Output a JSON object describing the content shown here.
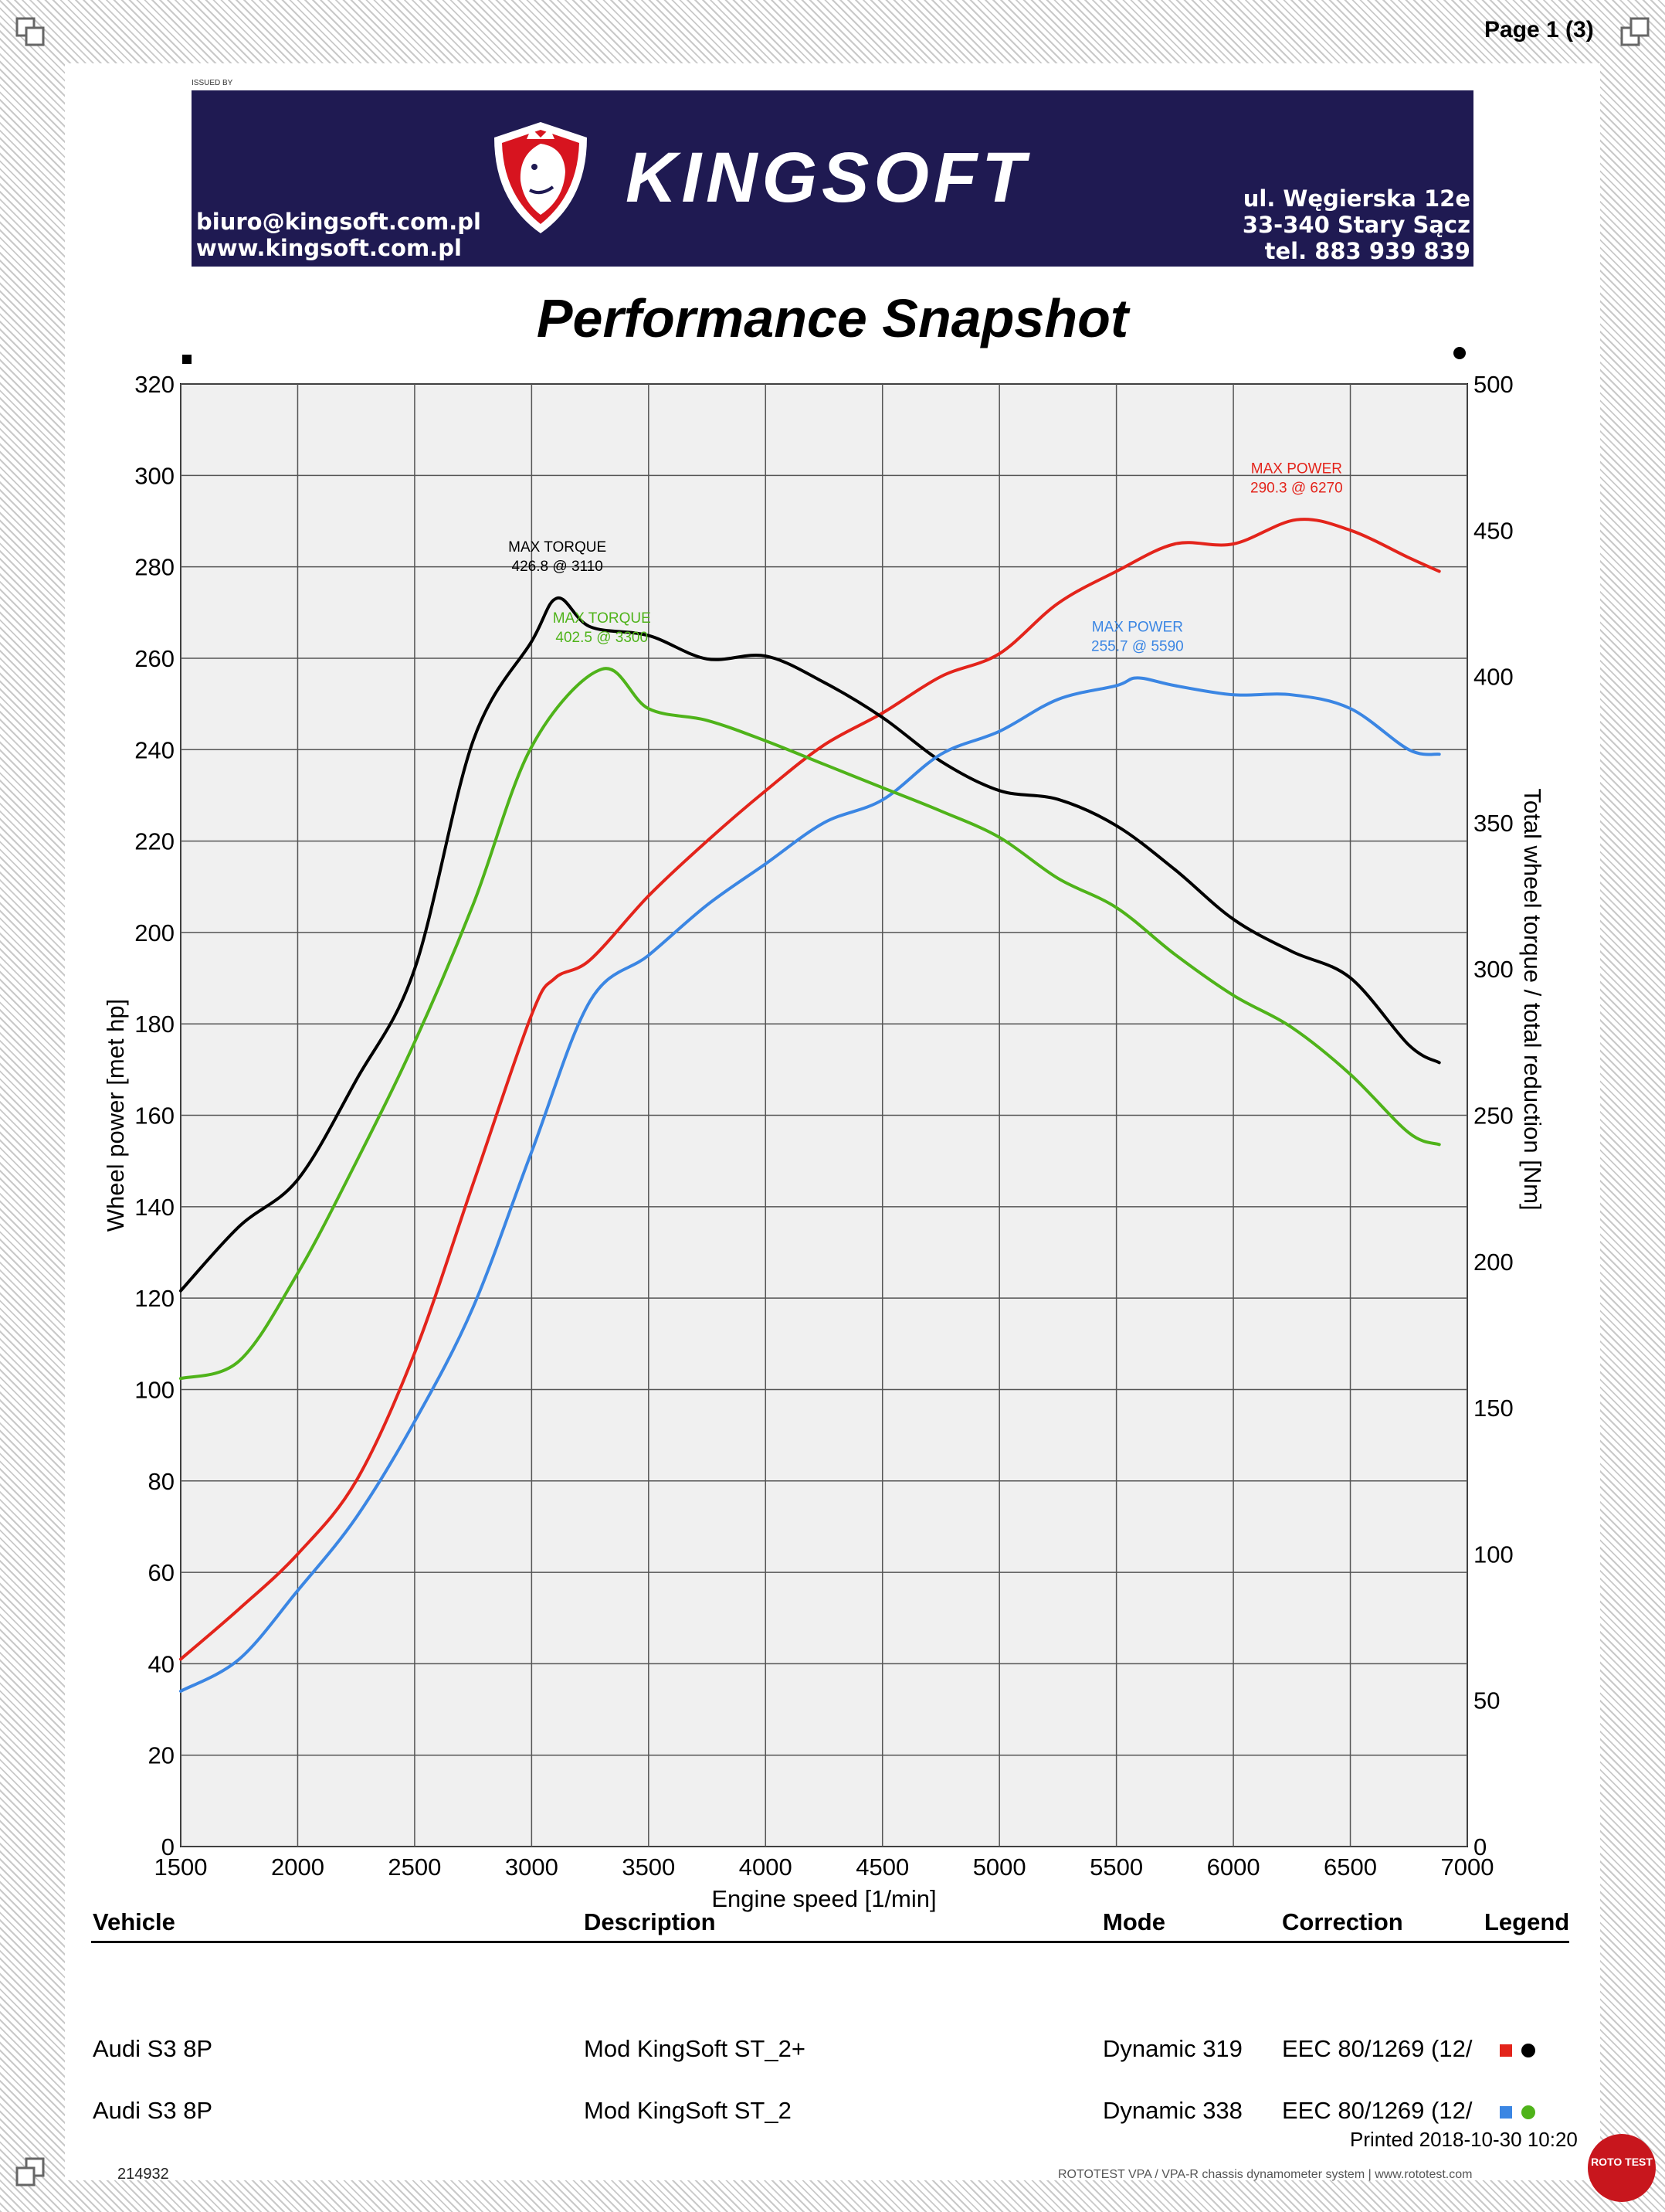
{
  "header": {
    "page_label": "Page 1 (3)",
    "issued_by": "ISSUED BY",
    "brand": "KINGSOFT",
    "email": "biuro@kingsoft.com.pl",
    "website": "www.kingsoft.com.pl",
    "address_line1": "ul. Węgierska 12e",
    "address_line2": "33-340 Stary Sącz",
    "phone": "tel. 883 939 839",
    "banner_color": "#1f1a52",
    "logo_accent": "#d7141f"
  },
  "title": "Performance Snapshot",
  "chart_data": {
    "type": "line",
    "xlabel": "Engine speed [1/min]",
    "ylabel_left": "Wheel power [met hp]",
    "ylabel_right": "Total wheel torque / total reduction [Nm]",
    "xlim": [
      1500,
      7000
    ],
    "ylim_left": [
      0,
      320
    ],
    "ylim_right": [
      0,
      500
    ],
    "x_ticks": [
      1500,
      2000,
      2500,
      3000,
      3500,
      4000,
      4500,
      5000,
      5500,
      6000,
      6500,
      7000
    ],
    "y_ticks_left": [
      0,
      20,
      40,
      60,
      80,
      100,
      120,
      140,
      160,
      180,
      200,
      220,
      240,
      260,
      280,
      300,
      320
    ],
    "y_ticks_right": [
      0,
      50,
      100,
      150,
      200,
      250,
      300,
      350,
      400,
      450,
      500
    ],
    "grid": true,
    "series": [
      {
        "axis": "left",
        "color": "#e3241b",
        "x": [
          1500,
          1750,
          2000,
          2250,
          2500,
          2750,
          3000,
          3100,
          3250,
          3500,
          3750,
          4000,
          4250,
          4500,
          4750,
          5000,
          5250,
          5500,
          5750,
          6000,
          6270,
          6500,
          6750,
          6880
        ],
        "y": [
          41,
          52,
          64,
          80,
          108,
          145,
          182,
          190,
          194,
          208,
          220,
          231,
          241,
          248,
          256,
          261,
          272,
          279,
          285,
          285,
          290.3,
          288,
          282,
          279
        ]
      },
      {
        "axis": "right",
        "color": "#000000",
        "x": [
          1500,
          1750,
          2000,
          2250,
          2500,
          2750,
          3000,
          3110,
          3250,
          3500,
          3750,
          4000,
          4250,
          4500,
          4750,
          5000,
          5250,
          5500,
          5750,
          6000,
          6250,
          6500,
          6750,
          6880
        ],
        "y": [
          190,
          212,
          228,
          262,
          300,
          378,
          412,
          426.8,
          417,
          414,
          406,
          407,
          398,
          386,
          371,
          361,
          358,
          349,
          334,
          317,
          306,
          297,
          274,
          268
        ]
      },
      {
        "axis": "left",
        "color": "#3b86e3",
        "x": [
          1500,
          1750,
          2000,
          2250,
          2500,
          2750,
          3000,
          3250,
          3500,
          3750,
          4000,
          4250,
          4500,
          4750,
          5000,
          5250,
          5500,
          5590,
          5750,
          6000,
          6250,
          6500,
          6750,
          6880
        ],
        "y": [
          34,
          41,
          56,
          72,
          93,
          118,
          152,
          185,
          195,
          206,
          215,
          224,
          229,
          239,
          244,
          251,
          254,
          255.7,
          254,
          252,
          252,
          249,
          240,
          239
        ]
      },
      {
        "axis": "right",
        "color": "#4fb31a",
        "x": [
          1500,
          1750,
          2000,
          2250,
          2500,
          2750,
          3000,
          3300,
          3500,
          3750,
          4000,
          4250,
          4500,
          4750,
          5000,
          5250,
          5500,
          5750,
          6000,
          6250,
          6500,
          6750,
          6880
        ],
        "y": [
          160,
          166,
          196,
          234,
          275,
          322,
          376,
          402.5,
          389,
          385,
          378,
          370,
          362,
          354,
          345,
          331,
          321,
          305,
          291,
          280,
          264,
          244,
          240
        ]
      }
    ],
    "annotations": [
      {
        "label": "MAX POWER",
        "value": "290.3 @ 6270",
        "color": "#e3241b"
      },
      {
        "label": "MAX TORQUE",
        "value": "426.8 @ 3110",
        "color": "#000000"
      },
      {
        "label": "MAX POWER",
        "value": "255.7 @ 5590",
        "color": "#3b86e3"
      },
      {
        "label": "MAX TORQUE",
        "value": "402.5 @ 3300",
        "color": "#4fb31a"
      }
    ]
  },
  "table": {
    "headers": [
      "Vehicle",
      "Description",
      "Mode",
      "Correction",
      "Legend"
    ],
    "rows": [
      {
        "vehicle": "Audi S3 8P",
        "description": "Mod KingSoft ST_2+",
        "mode": "Dynamic 319",
        "correction": "EEC 80/1269 (12/",
        "legend_power": "#e3241b",
        "legend_torque": "#000000"
      },
      {
        "vehicle": "Audi S3 8P",
        "description": "Mod KingSoft ST_2",
        "mode": "Dynamic 338",
        "correction": "EEC 80/1269 (12/",
        "legend_power": "#3b86e3",
        "legend_torque": "#4fb31a"
      }
    ]
  },
  "printed": "Printed 2018-10-30 10:20",
  "footer": {
    "id": "214932",
    "text": "ROTOTEST VPA / VPA-R chassis dynamometer system | www.rototest.com",
    "badge": "ROTO TEST"
  }
}
